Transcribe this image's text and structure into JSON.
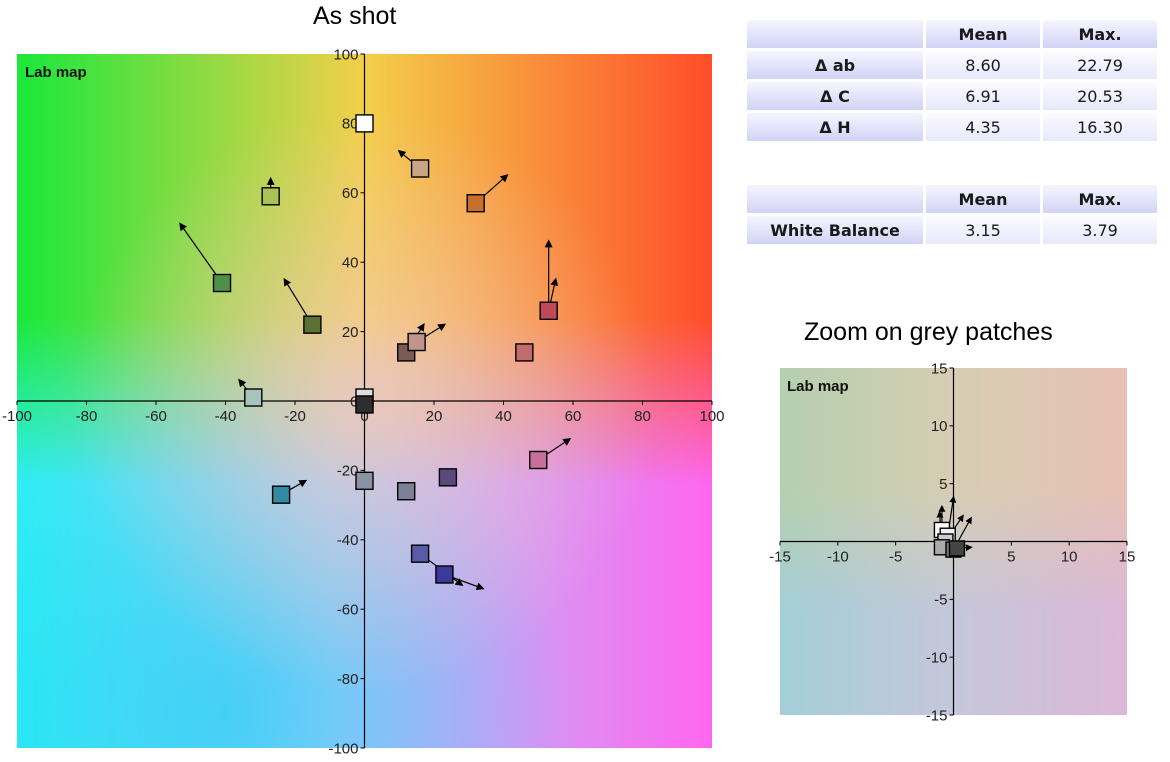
{
  "main_title": "As shot",
  "zoom_title": "Zoom on grey patches",
  "delta_table": {
    "headers": [
      "",
      "Mean",
      "Max."
    ],
    "rows": [
      {
        "label": "Δ ab",
        "mean": "8.60",
        "max": "22.79"
      },
      {
        "label": "Δ C",
        "mean": "6.91",
        "max": "20.53"
      },
      {
        "label": "Δ H",
        "mean": "4.35",
        "max": "16.30"
      }
    ]
  },
  "wb_table": {
    "headers": [
      "",
      "Mean",
      "Max."
    ],
    "rows": [
      {
        "label": "White Balance",
        "mean": "3.15",
        "max": "3.79"
      }
    ]
  },
  "chart_data": [
    {
      "type": "scatter",
      "title": "As shot",
      "plot_label": "Lab map",
      "xlabel": "",
      "ylabel": "",
      "xlim": [
        -100,
        100
      ],
      "ylim": [
        -100,
        100
      ],
      "xticks": [
        -100,
        -80,
        -60,
        -40,
        -20,
        0,
        20,
        40,
        60,
        80,
        100
      ],
      "yticks": [
        -100,
        -80,
        -60,
        -40,
        -20,
        20,
        40,
        60,
        80,
        100
      ],
      "grid": false,
      "background": "Lab a*b* color map gradient",
      "points": [
        {
          "a": 0,
          "b": 80,
          "ta": -1,
          "tb": 78,
          "color": "#ffffff"
        },
        {
          "a": 16,
          "b": 67,
          "ta": 10,
          "tb": 72,
          "color": "#c9a585"
        },
        {
          "a": 32,
          "b": 57,
          "ta": 41,
          "tb": 65,
          "color": "#c8702a"
        },
        {
          "a": -27,
          "b": 59,
          "ta": -27,
          "tb": 64,
          "color": "#a8c258"
        },
        {
          "a": -41,
          "b": 34,
          "ta": -53,
          "tb": 51,
          "color": "#4f8f4a"
        },
        {
          "a": -15,
          "b": 22,
          "ta": -23,
          "tb": 35,
          "color": "#5a7034"
        },
        {
          "a": 53,
          "b": 26,
          "ta": 53,
          "tb": 46,
          "color": "#c04858"
        },
        {
          "a": 53,
          "b": 26,
          "ta": 55,
          "tb": 35,
          "color": "#c04858"
        },
        {
          "a": 46,
          "b": 14,
          "ta": 46,
          "tb": 14,
          "color": "#c06d6e"
        },
        {
          "a": 12,
          "b": 14,
          "ta": 17,
          "tb": 22,
          "color": "#7a5c52"
        },
        {
          "a": 15,
          "b": 17,
          "ta": 23,
          "tb": 22,
          "color": "#c0948a"
        },
        {
          "a": -32,
          "b": 1,
          "ta": -36,
          "tb": 6,
          "color": "#a6c4bc"
        },
        {
          "a": 0,
          "b": 1,
          "ta": 0,
          "tb": 1,
          "color": "#dddddd"
        },
        {
          "a": 0,
          "b": -1,
          "ta": 0,
          "tb": -1,
          "color": "#2e2e2e"
        },
        {
          "a": -24,
          "b": -27,
          "ta": -17,
          "tb": -23,
          "color": "#2f8aa2"
        },
        {
          "a": 0,
          "b": -23,
          "ta": 0,
          "tb": -23,
          "color": "#8a93a4"
        },
        {
          "a": 12,
          "b": -26,
          "ta": 12,
          "tb": -26,
          "color": "#7c7f96"
        },
        {
          "a": 24,
          "b": -22,
          "ta": 24,
          "tb": -22,
          "color": "#5a4a7c"
        },
        {
          "a": 50,
          "b": -17,
          "ta": 59,
          "tb": -11,
          "color": "#c8709a"
        },
        {
          "a": 16,
          "b": -44,
          "ta": 28,
          "tb": -53,
          "color": "#5a5aa6"
        },
        {
          "a": 23,
          "b": -50,
          "ta": 34,
          "tb": -54,
          "color": "#3a3a9a"
        }
      ]
    },
    {
      "type": "scatter",
      "title": "Zoom on grey patches",
      "plot_label": "Lab map",
      "xlabel": "",
      "ylabel": "",
      "xlim": [
        -15,
        15
      ],
      "ylim": [
        -15,
        15
      ],
      "xticks": [
        -15,
        -10,
        -5,
        5,
        10,
        15
      ],
      "yticks": [
        -15,
        -10,
        -5,
        5,
        10,
        15
      ],
      "grid": false,
      "background": "Lab a*b* color map gradient (muted)",
      "points": [
        {
          "a": -1,
          "b": 1,
          "ta": -1,
          "tb": 3,
          "color": "#ffffff"
        },
        {
          "a": -0.5,
          "b": 0.5,
          "ta": 0,
          "tb": 3.8,
          "color": "#eeeeee"
        },
        {
          "a": -0.7,
          "b": 0,
          "ta": 0.8,
          "tb": 2.2,
          "color": "#cccccc"
        },
        {
          "a": -1,
          "b": -0.5,
          "ta": -1.2,
          "tb": 2.5,
          "color": "#aaaaaa"
        },
        {
          "a": 0,
          "b": -0.7,
          "ta": 1.5,
          "tb": 2,
          "color": "#777777"
        },
        {
          "a": 0.3,
          "b": -0.6,
          "ta": 1.5,
          "tb": -0.5,
          "color": "#444444"
        }
      ]
    }
  ]
}
